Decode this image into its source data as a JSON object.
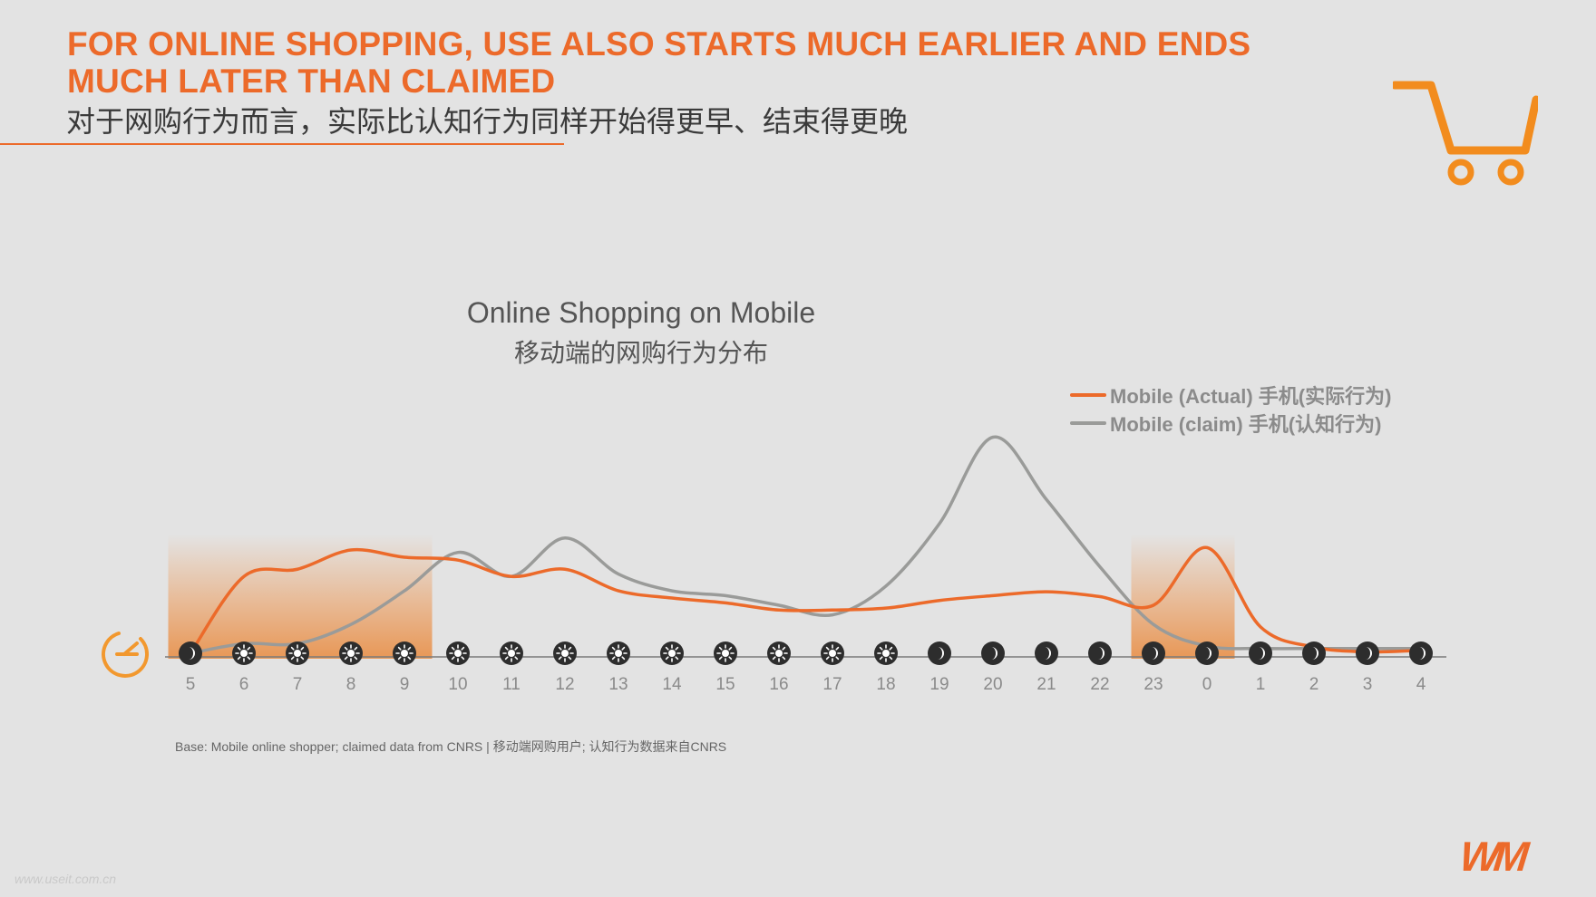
{
  "header": {
    "headline": "FOR ONLINE SHOPPING, USE ALSO STARTS MUCH EARLIER AND ENDS MUCH LATER THAN CLAIMED",
    "subheadline": "对于网购行为而言，实际比认知行为同样开始得更早、结束得更晚",
    "accent_color": "#ec6a2a",
    "icon": "shopping-cart-icon"
  },
  "chart_data": {
    "type": "line",
    "title": "Online Shopping on Mobile",
    "subtitle": "移动端的网购行为分布",
    "xlabel": "",
    "ylabel": "",
    "categories": [
      "5",
      "6",
      "7",
      "8",
      "9",
      "10",
      "11",
      "12",
      "13",
      "14",
      "15",
      "16",
      "17",
      "18",
      "19",
      "20",
      "21",
      "22",
      "23",
      "0",
      "1",
      "2",
      "3",
      "4"
    ],
    "series": [
      {
        "name": "Mobile (Actual) 手机(实际行为)",
        "color": "#ec6a2a",
        "values": [
          0,
          16,
          17.5,
          21.5,
          20,
          19.4,
          16,
          17.5,
          13,
          11.5,
          10.5,
          9,
          9,
          9.4,
          11,
          12,
          12.8,
          11.8,
          10,
          22,
          5.5,
          1.3,
          0.3,
          0.6
        ]
      },
      {
        "name": "Mobile (claim) 手机(认知行为)",
        "color": "#9a9b99",
        "values": [
          0,
          2,
          2,
          6,
          13,
          21,
          16,
          24,
          16.5,
          13,
          12,
          10,
          8,
          14,
          27,
          45,
          32,
          18,
          6,
          1.5,
          1,
          1,
          1,
          1
        ]
      }
    ],
    "ylim": [
      0,
      50
    ],
    "grid": false,
    "legend_position": "top-right",
    "highlighted_ranges": [
      [
        "5",
        "9"
      ],
      [
        "23",
        "0"
      ]
    ],
    "time_of_day_icons": [
      "moon",
      "sun",
      "sun",
      "sun",
      "sun",
      "sun",
      "sun",
      "sun",
      "sun",
      "sun",
      "sun",
      "sun",
      "sun",
      "sun",
      "moon",
      "moon",
      "moon",
      "moon",
      "moon",
      "moon",
      "moon",
      "moon",
      "moon",
      "moon"
    ],
    "axis_icon": "clock-icon"
  },
  "footnote": "Base: Mobile online shopper; claimed data from CNRS | 移动端网购用户; 认知行为数据来自CNRS",
  "watermark": "www.useit.com.cn",
  "brand": {
    "logo_text": "WM"
  }
}
